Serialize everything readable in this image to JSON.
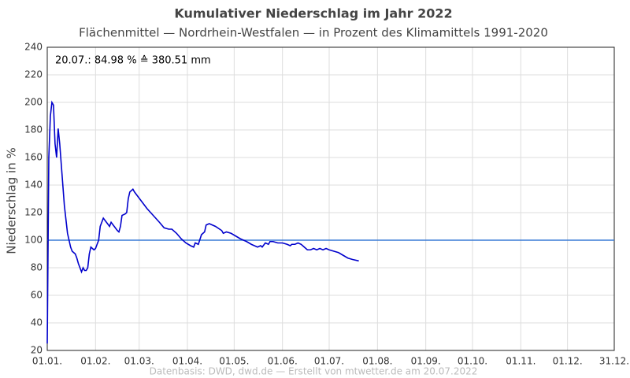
{
  "chart_data": {
    "type": "line",
    "title": "Kumulativer Niederschlag im Jahr 2022",
    "subtitle": "Flächenmittel — Nordrhein-Westfalen — in Prozent des Klimamittels 1991-2020",
    "y_label": "Niederschlag in %",
    "annotation": "20.07.:  84.98 % ≙ 380.51 mm",
    "footer": "Datenbasis: DWD, dwd.de — Erstellt von mtwetter.de am 20.07.2022",
    "x": [
      0,
      1,
      2,
      3,
      4,
      5,
      6,
      7,
      8,
      9,
      10,
      11,
      12,
      13,
      14,
      15,
      16,
      17,
      18,
      19,
      20,
      21,
      22,
      23,
      24,
      25,
      26,
      27,
      28,
      29,
      30,
      31,
      32,
      33,
      34,
      36,
      38,
      40,
      41,
      43,
      45,
      46,
      47,
      48,
      50,
      51,
      52,
      53,
      55,
      56,
      60,
      64,
      68,
      72,
      75,
      78,
      80,
      83,
      86,
      89,
      92,
      94,
      95,
      97,
      99,
      101,
      102,
      104,
      108,
      112,
      113,
      115,
      118,
      121,
      124,
      126,
      128,
      131,
      133,
      135,
      137,
      138,
      140,
      142,
      143,
      145,
      148,
      151,
      154,
      156,
      157,
      159,
      161,
      163,
      165,
      167,
      169,
      171,
      173,
      175,
      177,
      179,
      181,
      184,
      187,
      190,
      193,
      196,
      200
    ],
    "series": [
      {
        "color": "#0000cc",
        "values": [
          25,
          160,
          190,
          200,
          198,
          170,
          160,
          181,
          170,
          155,
          140,
          125,
          115,
          105,
          100,
          95,
          92,
          91,
          90,
          87,
          83,
          80,
          77,
          80,
          78,
          78,
          80,
          90,
          95,
          94,
          93,
          94,
          97,
          100,
          110,
          116,
          113,
          110,
          113,
          110,
          107,
          106,
          110,
          118,
          119,
          120,
          130,
          135,
          137,
          135,
          129,
          123,
          118,
          113,
          109,
          108,
          108,
          105,
          101,
          98,
          96,
          95,
          98,
          97,
          104,
          106,
          111,
          112,
          110,
          107,
          105,
          106,
          105,
          103,
          101,
          100,
          99,
          97,
          96,
          95,
          96,
          95,
          98,
          97,
          99,
          99,
          98,
          98,
          97,
          96,
          97,
          97,
          98,
          97,
          95,
          93,
          93,
          94,
          93,
          94,
          93,
          94,
          93,
          92,
          91,
          89,
          87,
          86,
          84.98
        ]
      }
    ],
    "reference_line": {
      "value": 100,
      "color": "#3a7bd5"
    },
    "xlim": [
      0,
      364
    ],
    "xticks": [
      {
        "value": 0,
        "label": "01.01."
      },
      {
        "value": 31,
        "label": "01.02."
      },
      {
        "value": 59,
        "label": "01.03."
      },
      {
        "value": 90,
        "label": "01.04."
      },
      {
        "value": 120,
        "label": "01.05."
      },
      {
        "value": 151,
        "label": "01.06."
      },
      {
        "value": 181,
        "label": "01.07."
      },
      {
        "value": 212,
        "label": "01.08."
      },
      {
        "value": 243,
        "label": "01.09."
      },
      {
        "value": 273,
        "label": "01.10."
      },
      {
        "value": 304,
        "label": "01.11."
      },
      {
        "value": 334,
        "label": "01.12."
      },
      {
        "value": 364,
        "label": "31.12."
      }
    ],
    "ylim": [
      20,
      240
    ],
    "yticks": [
      20,
      40,
      60,
      80,
      100,
      120,
      140,
      160,
      180,
      200,
      220,
      240
    ],
    "grid": true
  }
}
